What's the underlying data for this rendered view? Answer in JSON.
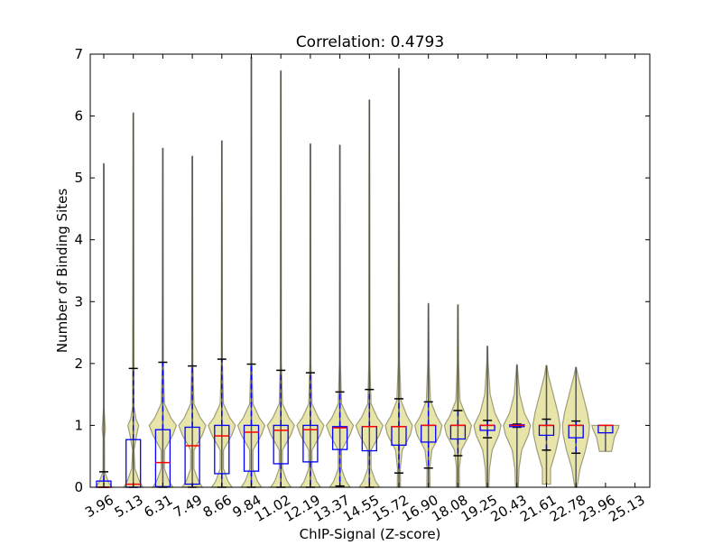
{
  "chart_data": {
    "type": "violin+box",
    "title": "Correlation: 0.4793",
    "xlabel": "ChIP-Signal (Z-score)",
    "ylabel": "Number of Binding Sites",
    "ylim": [
      0,
      7
    ],
    "yticks": [
      0,
      1,
      2,
      3,
      4,
      5,
      6,
      7
    ],
    "xtick_labels": [
      "3.96",
      "5.13",
      "6.31",
      "7.49",
      "8.66",
      "9.84",
      "11.02",
      "12.19",
      "13.37",
      "14.55",
      "15.72",
      "16.90",
      "18.08",
      "19.25",
      "20.43",
      "21.61",
      "22.78",
      "23.96",
      "25.13"
    ],
    "colors": {
      "violin_fill": "#e6e4a6",
      "violin_edge": "#9a9870",
      "box": "#0000ff",
      "median": "#ff0000",
      "whisker": "#0000ff",
      "cap": "#000000",
      "range_line": "#555555"
    },
    "profiles": {
      "low": [
        [
          0,
          0.6
        ],
        [
          0.08,
          0.35
        ],
        [
          0.25,
          0.06
        ],
        [
          0.8,
          0.05
        ],
        [
          0.95,
          0.12
        ],
        [
          1.05,
          0.08
        ],
        [
          1.3,
          0.02
        ],
        [
          7,
          0.02
        ]
      ],
      "low2": [
        [
          0,
          0.7
        ],
        [
          0.1,
          0.45
        ],
        [
          0.3,
          0.12
        ],
        [
          0.6,
          0.05
        ],
        [
          0.85,
          0.25
        ],
        [
          1,
          0.4
        ],
        [
          1.1,
          0.2
        ],
        [
          1.3,
          0.05
        ],
        [
          7,
          0.02
        ]
      ],
      "mid": [
        [
          0,
          0.75
        ],
        [
          0.1,
          0.45
        ],
        [
          0.3,
          0.12
        ],
        [
          0.6,
          0.12
        ],
        [
          0.85,
          0.75
        ],
        [
          1,
          1
        ],
        [
          1.12,
          0.6
        ],
        [
          1.35,
          0.12
        ],
        [
          2,
          0.04
        ],
        [
          7,
          0.02
        ]
      ],
      "late": [
        [
          0,
          0.12
        ],
        [
          0.3,
          0.1
        ],
        [
          0.6,
          0.25
        ],
        [
          0.85,
          0.85
        ],
        [
          1,
          1
        ],
        [
          1.15,
          0.6
        ],
        [
          1.4,
          0.15
        ],
        [
          2,
          0.05
        ],
        [
          7,
          0.02
        ]
      ],
      "taper": [
        [
          0,
          0.1
        ],
        [
          0.3,
          0.15
        ],
        [
          0.6,
          0.35
        ],
        [
          0.85,
          0.85
        ],
        [
          1,
          1
        ],
        [
          1.2,
          0.55
        ],
        [
          1.5,
          0.2
        ],
        [
          2,
          0.05
        ],
        [
          7,
          0.02
        ]
      ],
      "broad": [
        [
          0,
          0.08
        ],
        [
          0.3,
          0.3
        ],
        [
          0.6,
          0.7
        ],
        [
          0.85,
          0.95
        ],
        [
          1,
          1
        ],
        [
          1.2,
          0.85
        ],
        [
          1.5,
          0.5
        ],
        [
          1.8,
          0.15
        ],
        [
          2,
          0.05
        ]
      ],
      "cup": [
        [
          0.58,
          0.45
        ],
        [
          0.8,
          0.65
        ],
        [
          0.95,
          0.95
        ],
        [
          1,
          1
        ]
      ]
    },
    "violins": [
      {
        "x": "3.96",
        "profile": "low",
        "min": 0,
        "max": 5.23,
        "whislo": 0,
        "q1": 0,
        "med": 0,
        "q3": 0.1,
        "whishi": 0.25
      },
      {
        "x": "5.13",
        "profile": "low2",
        "min": 0,
        "max": 6.05,
        "whislo": 0,
        "q1": 0,
        "med": 0.05,
        "q3": 0.77,
        "whishi": 1.92
      },
      {
        "x": "6.31",
        "profile": "mid",
        "min": 0,
        "max": 5.48,
        "whislo": 0,
        "q1": 0.01,
        "med": 0.4,
        "q3": 0.93,
        "whishi": 2.02
      },
      {
        "x": "7.49",
        "profile": "mid",
        "min": 0,
        "max": 5.35,
        "whislo": 0,
        "q1": 0.05,
        "med": 0.67,
        "q3": 0.97,
        "whishi": 1.96
      },
      {
        "x": "8.66",
        "profile": "mid",
        "min": 0,
        "max": 5.6,
        "whislo": 0,
        "q1": 0.22,
        "med": 0.83,
        "q3": 1.0,
        "whishi": 2.07
      },
      {
        "x": "9.84",
        "profile": "mid",
        "min": 0,
        "max": 6.95,
        "whislo": 0,
        "q1": 0.26,
        "med": 0.89,
        "q3": 1.0,
        "whishi": 1.99
      },
      {
        "x": "11.02",
        "profile": "mid",
        "min": 0,
        "max": 6.73,
        "whislo": 0,
        "q1": 0.38,
        "med": 0.92,
        "q3": 1.0,
        "whishi": 1.89
      },
      {
        "x": "12.19",
        "profile": "mid",
        "min": 0,
        "max": 5.55,
        "whislo": 0,
        "q1": 0.41,
        "med": 0.93,
        "q3": 1.0,
        "whishi": 1.85
      },
      {
        "x": "13.37",
        "profile": "mid",
        "min": 0,
        "max": 5.53,
        "whislo": 0.02,
        "q1": 0.61,
        "med": 0.96,
        "q3": 0.98,
        "whishi": 1.54
      },
      {
        "x": "14.55",
        "profile": "mid",
        "min": 0,
        "max": 6.26,
        "whislo": 0,
        "q1": 0.59,
        "med": 0.98,
        "q3": 0.98,
        "whishi": 1.58
      },
      {
        "x": "15.72",
        "profile": "late",
        "min": 0,
        "max": 6.77,
        "whislo": 0.23,
        "q1": 0.68,
        "med": 0.98,
        "q3": 0.98,
        "whishi": 1.43
      },
      {
        "x": "16.90",
        "profile": "late",
        "min": 0,
        "max": 2.97,
        "whislo": 0.31,
        "q1": 0.73,
        "med": 1.0,
        "q3": 1.0,
        "whishi": 1.38
      },
      {
        "x": "18.08",
        "profile": "late",
        "min": 0,
        "max": 2.95,
        "whislo": 0.51,
        "q1": 0.78,
        "med": 1.0,
        "q3": 1.0,
        "whishi": 1.24
      },
      {
        "x": "19.25",
        "profile": "taper",
        "min": 0,
        "max": 2.28,
        "whislo": 0.8,
        "q1": 0.92,
        "med": 1.0,
        "q3": 1.0,
        "whishi": 1.08
      },
      {
        "x": "20.43",
        "profile": "taper",
        "min": 0,
        "max": 1.98,
        "whislo": 0.97,
        "q1": 0.98,
        "med": 1.0,
        "q3": 1.01,
        "whishi": 1.02
      },
      {
        "x": "21.61",
        "profile": "broad",
        "min": 0.05,
        "max": 1.97,
        "whislo": 0.6,
        "q1": 0.84,
        "med": 1.0,
        "q3": 1.0,
        "whishi": 1.1
      },
      {
        "x": "22.78",
        "profile": "broad",
        "min": 0,
        "max": 1.94,
        "whislo": 0.55,
        "q1": 0.8,
        "med": 1.0,
        "q3": 1.0,
        "whishi": 1.07
      },
      {
        "x": "23.96",
        "profile": "cup",
        "min": 0.58,
        "max": 1.0,
        "whislo": null,
        "q1": 0.88,
        "med": 1.0,
        "q3": 1.0,
        "whishi": null
      }
    ]
  }
}
